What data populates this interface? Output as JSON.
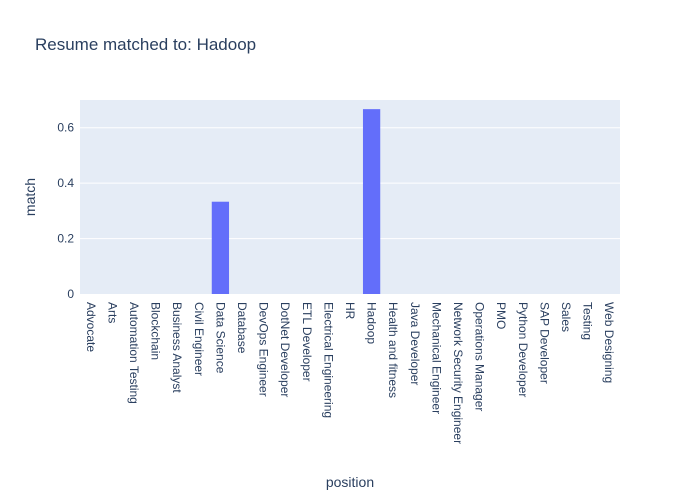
{
  "chart_data": {
    "type": "bar",
    "title": "Resume matched to: Hadoop",
    "xlabel": "position",
    "ylabel": "match",
    "ylim": [
      0,
      0.7
    ],
    "yticks": [
      0,
      0.2,
      0.4,
      0.6
    ],
    "ytick_labels": [
      "0",
      "0.2",
      "0.4",
      "0.6"
    ],
    "grid": true,
    "legend": "none",
    "bar_color": "#636efa",
    "plot_bg": "#e5ecf6",
    "categories": [
      "Advocate",
      "Arts",
      "Automation Testing",
      "Blockchain",
      "Business Analyst",
      "Civil Engineer",
      "Data Science",
      "Database",
      "DevOps Engineer",
      "DotNet Developer",
      "ETL Developer",
      "Electrical Engineering",
      "HR",
      "Hadoop",
      "Health and fitness",
      "Java Developer",
      "Mechanical Engineer",
      "Network Security Engineer",
      "Operations Manager",
      "PMO",
      "Python Developer",
      "SAP Developer",
      "Sales",
      "Testing",
      "Web Designing"
    ],
    "values": [
      0,
      0,
      0,
      0,
      0,
      0,
      0.333,
      0,
      0,
      0,
      0,
      0,
      0,
      0.667,
      0,
      0,
      0,
      0,
      0,
      0,
      0,
      0,
      0,
      0,
      0
    ]
  }
}
